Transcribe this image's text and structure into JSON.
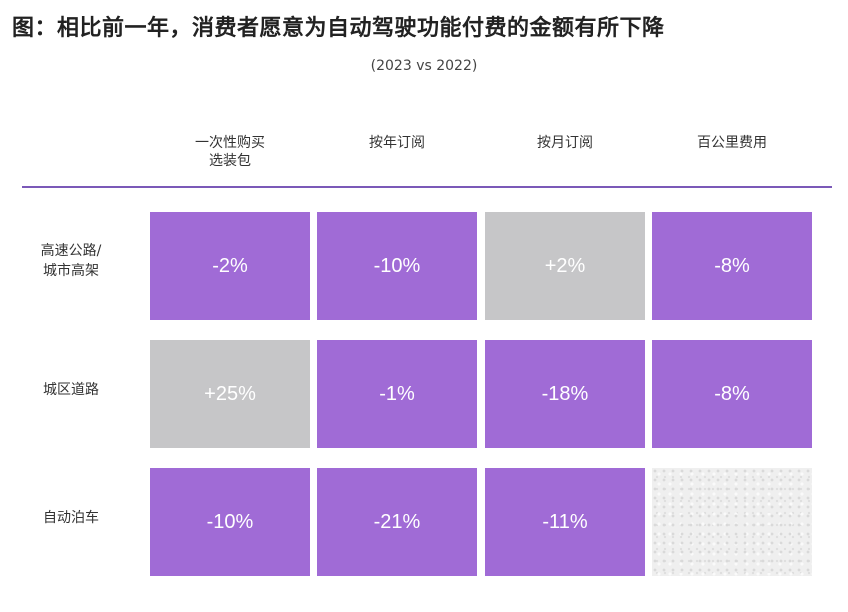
{
  "chart_data": {
    "type": "table",
    "title": "图：相比前一年，消费者愿意为自动驾驶功能付费的金额有所下降",
    "subtitle": "(2023 vs 2022)",
    "columns": [
      [
        "一次性购买",
        "选装包"
      ],
      [
        "按年订阅"
      ],
      [
        "按月订阅"
      ],
      [
        "百公里费用"
      ]
    ],
    "rows": [
      {
        "label": [
          "高速公路/",
          "城市高架"
        ],
        "cells": [
          {
            "text": "-2%",
            "value": -2,
            "color": "purple"
          },
          {
            "text": "-10%",
            "value": -10,
            "color": "purple"
          },
          {
            "text": "+2%",
            "value": 2,
            "color": "gray"
          },
          {
            "text": "-8%",
            "value": -8,
            "color": "purple"
          }
        ]
      },
      {
        "label": [
          "城区道路"
        ],
        "cells": [
          {
            "text": "+25%",
            "value": 25,
            "color": "gray"
          },
          {
            "text": "-1%",
            "value": -1,
            "color": "purple"
          },
          {
            "text": "-18%",
            "value": -18,
            "color": "purple"
          },
          {
            "text": "-8%",
            "value": -8,
            "color": "purple"
          }
        ]
      },
      {
        "label": [
          "自动泊车"
        ],
        "cells": [
          {
            "text": "-10%",
            "value": -10,
            "color": "purple"
          },
          {
            "text": "-21%",
            "value": -21,
            "color": "purple"
          },
          {
            "text": "-11%",
            "value": -11,
            "color": "purple"
          },
          {
            "text": "",
            "value": null,
            "color": "texture"
          }
        ]
      }
    ]
  },
  "colors": {
    "decrease": "#a06bd6",
    "increase": "#c6c6c8",
    "rule": "#7b59b8"
  }
}
